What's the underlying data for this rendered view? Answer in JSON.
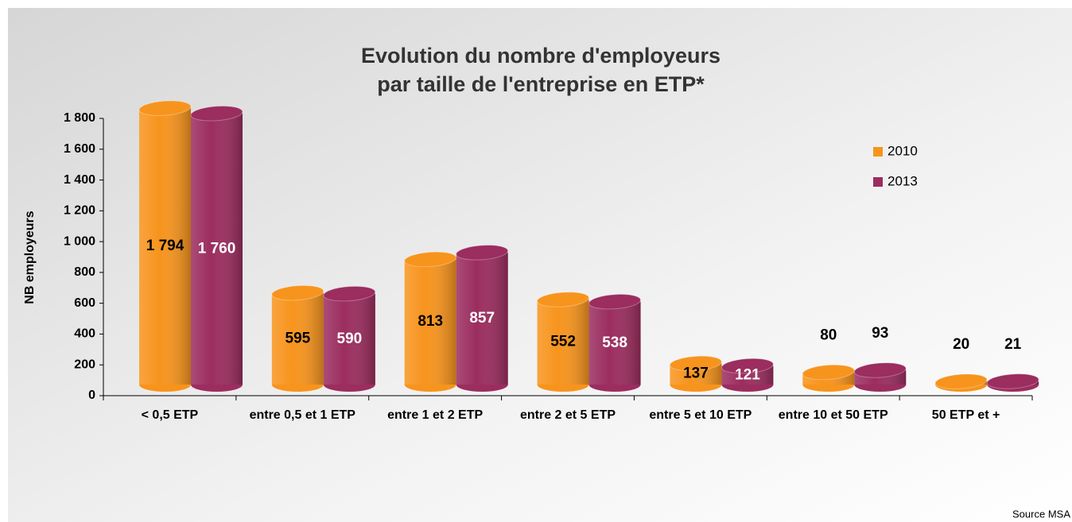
{
  "chart_data": {
    "type": "bar",
    "title": "Evolution du nombre d'employeurs",
    "subtitle": "par taille de l'entreprise en ETP*",
    "y_label": "NB employeurs",
    "source": "Source MSA",
    "categories": [
      "< 0,5 ETP",
      "entre 0,5 et 1 ETP",
      "entre 1 et 2 ETP",
      "entre 2 et 5 ETP",
      "entre 5 et 10 ETP",
      "entre 10 et 50 ETP",
      "50 ETP et +"
    ],
    "series": [
      {
        "name": "2010",
        "color": "#f7941d",
        "values": [
          1794,
          595,
          813,
          552,
          137,
          80,
          20
        ],
        "value_labels": [
          "1 794",
          "595",
          "813",
          "552",
          "137",
          "80",
          "20"
        ]
      },
      {
        "name": "2013",
        "color": "#9b2d5f",
        "values": [
          1760,
          590,
          857,
          538,
          121,
          93,
          21
        ],
        "value_labels": [
          "1 760",
          "590",
          "857",
          "538",
          "121",
          "93",
          "21"
        ]
      }
    ],
    "ylim": [
      0,
      1800
    ],
    "yticks": [
      0,
      200,
      400,
      600,
      800,
      {
        "value": 1000,
        "label": "1 000"
      },
      {
        "value": 1200,
        "label": "1 200"
      },
      {
        "value": 1400,
        "label": "1 400"
      },
      {
        "value": 1600,
        "label": "1 600"
      },
      {
        "value": 1800,
        "label": "1 800"
      }
    ],
    "legend": "right"
  }
}
